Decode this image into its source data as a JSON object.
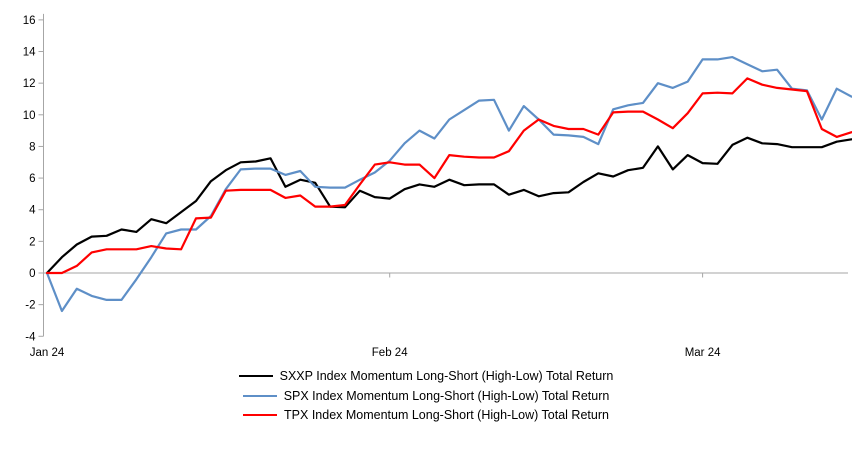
{
  "chart_data": {
    "type": "line",
    "title": "",
    "x_axis": {
      "tick_labels": [
        "Jan 24",
        "Feb 24",
        "Mar 24"
      ],
      "tick_day_indices": [
        0,
        23,
        44
      ]
    },
    "y_axis": {
      "ticks": [
        16,
        14,
        12,
        10,
        8,
        6,
        4,
        2,
        0,
        -2,
        -4
      ],
      "min": -4,
      "max": 16
    },
    "grid": "zero-line-only",
    "legend_position": "bottom-center",
    "series": [
      {
        "name": "SXXP Index Momentum Long-Short (High-Low) Total Return",
        "color": "#000000",
        "values": [
          0,
          1.0,
          1.8,
          2.3,
          2.35,
          2.75,
          2.6,
          3.4,
          3.15,
          3.85,
          4.55,
          5.8,
          6.5,
          7.0,
          7.05,
          7.25,
          5.45,
          5.9,
          5.7,
          4.2,
          4.15,
          5.2,
          4.8,
          4.7,
          5.3,
          5.6,
          5.45,
          5.9,
          5.55,
          5.6,
          5.6,
          4.95,
          5.25,
          4.85,
          5.05,
          5.1,
          5.75,
          6.3,
          6.1,
          6.5,
          6.65,
          8.0,
          6.55,
          7.45,
          6.95,
          6.9,
          8.1,
          8.55,
          8.2,
          8.15,
          7.95,
          7.95,
          7.95,
          8.3,
          8.45
        ]
      },
      {
        "name": "SPX Index Momentum Long-Short (High-Low) Total Return",
        "color": "#5E8FC7",
        "values": [
          0,
          -2.4,
          -1.0,
          -1.45,
          -1.7,
          -1.7,
          -0.4,
          1.0,
          2.5,
          2.75,
          2.75,
          3.6,
          5.3,
          6.55,
          6.6,
          6.6,
          6.2,
          6.45,
          5.45,
          5.4,
          5.4,
          5.9,
          6.35,
          7.1,
          8.2,
          9.0,
          8.5,
          9.7,
          10.3,
          10.9,
          10.95,
          9.0,
          10.55,
          9.7,
          8.75,
          8.7,
          8.6,
          8.15,
          10.35,
          10.6,
          10.75,
          12.0,
          11.7,
          12.1,
          13.5,
          13.5,
          13.65,
          13.2,
          12.75,
          12.85,
          11.65,
          11.55,
          9.7,
          11.65,
          11.15
        ]
      },
      {
        "name": "TPX Index Momentum Long-Short (High-Low) Total Return",
        "color": "#FF0000",
        "values": [
          0,
          0,
          0.45,
          1.3,
          1.5,
          1.5,
          1.5,
          1.7,
          1.55,
          1.5,
          3.45,
          3.5,
          5.2,
          5.25,
          5.25,
          5.25,
          4.75,
          4.9,
          4.2,
          4.2,
          4.3,
          5.6,
          6.85,
          7.0,
          6.85,
          6.85,
          6.0,
          7.45,
          7.35,
          7.3,
          7.3,
          7.7,
          9.0,
          9.7,
          9.3,
          9.1,
          9.1,
          8.75,
          10.15,
          10.2,
          10.2,
          9.7,
          9.15,
          10.1,
          11.35,
          11.4,
          11.35,
          12.3,
          11.9,
          11.7,
          11.6,
          11.5,
          9.1,
          8.6,
          8.9
        ]
      }
    ]
  },
  "colors": {
    "axis": "#A6A6A6",
    "zero_line": "#A6A6A6",
    "label_text": "#000000",
    "background": "#FFFFFF"
  }
}
